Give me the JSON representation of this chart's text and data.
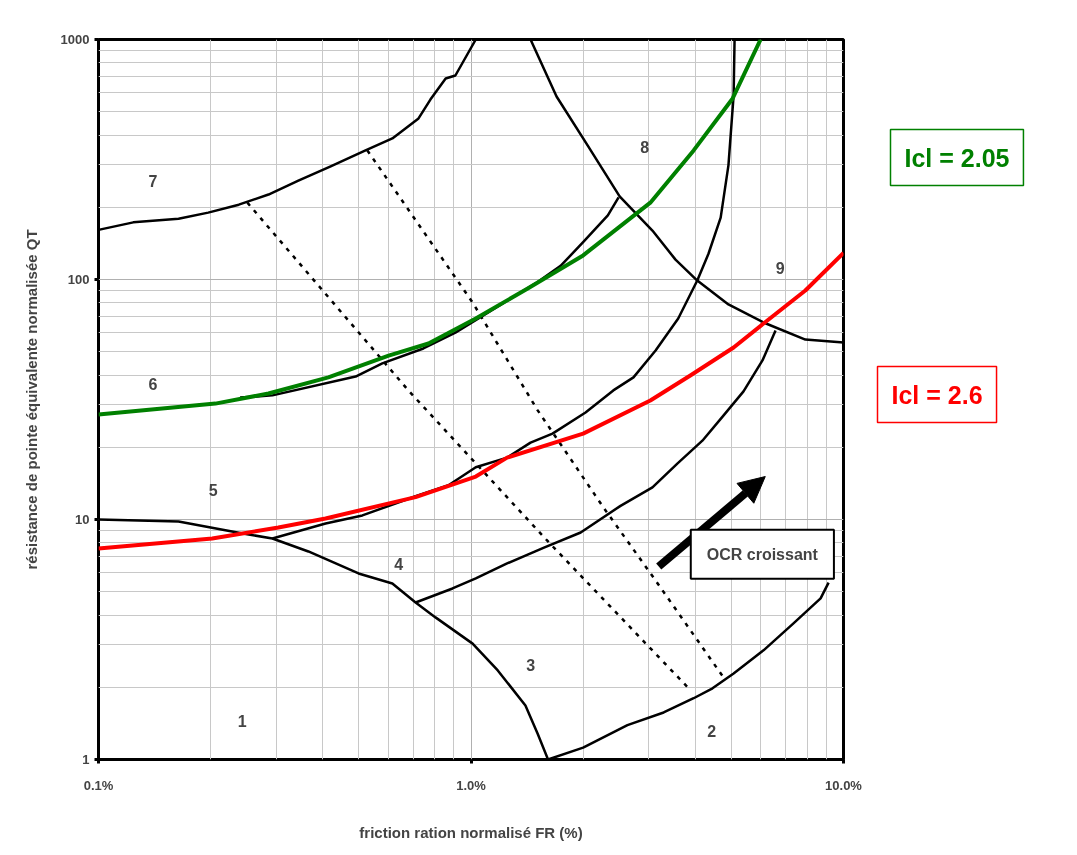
{
  "chart_data": {
    "type": "line",
    "xlabel": "friction ration normalisé FR (%)",
    "ylabel": "résistance de pointe équivalente normalisée QT",
    "log": "xy",
    "grid": true,
    "legend": false,
    "marker": "none",
    "xlim": [
      0.1,
      10
    ],
    "ylim": [
      1,
      1000
    ],
    "xticks": [
      {
        "value": 0.1,
        "label": "0.1%"
      },
      {
        "value": 1,
        "label": "1.0%"
      },
      {
        "value": 10,
        "label": "10.0%"
      }
    ],
    "yticks": [
      1,
      10,
      100,
      1000
    ],
    "series": [
      {
        "color": "#000000",
        "line_style": "solid",
        "x": [
          0.1,
          0.124,
          0.164,
          0.197,
          0.238,
          0.286,
          0.344,
          0.42,
          0.521,
          0.615,
          0.723,
          0.778,
          0.855,
          0.908,
          1.03
        ],
        "values": [
          161,
          173,
          179,
          190,
          205,
          226,
          258,
          296,
          345,
          387,
          469,
          562,
          688,
          708,
          1000
        ]
      },
      {
        "color": "#000000",
        "line_style": "solid",
        "x": [
          1.445,
          1.697,
          2.056,
          2.506,
          3.069,
          3.54,
          4.05,
          4.91,
          6.1,
          7.9,
          10
        ],
        "values": [
          1000,
          579,
          362,
          222,
          160,
          121,
          99,
          78.7,
          66.2,
          56.2,
          54.6
        ]
      },
      {
        "color": "#000000",
        "line_style": "solid",
        "x": [
          0.293,
          0.407,
          0.511,
          0.71,
          0.87,
          1.03,
          1.25,
          1.445,
          1.655,
          2.03,
          2.41,
          2.73,
          3.13,
          3.6,
          4.05,
          4.34,
          4.68,
          4.91,
          5.07,
          5.1
        ],
        "values": [
          8.33,
          9.62,
          10.4,
          12.5,
          13.9,
          16.5,
          18.1,
          20.9,
          22.8,
          27.9,
          34.5,
          39.1,
          50.6,
          68.8,
          99,
          128,
          181,
          299,
          585,
          1000
        ]
      },
      {
        "color": "#000000",
        "line_style": "solid",
        "x": [
          0.24,
          0.293,
          0.49,
          0.578,
          0.745,
          0.908,
          1.49,
          1.74,
          2.0,
          2.33,
          2.49
        ],
        "values": [
          32.2,
          32.9,
          39.4,
          44.7,
          51.6,
          60.1,
          96.3,
          114,
          143,
          185,
          220
        ]
      },
      {
        "color": "#000000",
        "line_style": "solid",
        "x": [
          0.1,
          0.164,
          0.244,
          0.293,
          0.366,
          0.499,
          0.615,
          0.71,
          0.803,
          1.01,
          1.18,
          1.4,
          1.51,
          1.61
        ],
        "values": [
          10,
          9.81,
          8.75,
          8.33,
          7.36,
          5.96,
          5.41,
          4.51,
          3.91,
          3.04,
          2.35,
          1.68,
          1.28,
          1.0
        ]
      },
      {
        "color": "#000000",
        "line_style": "solid",
        "x": [
          0.71,
          0.892,
          1.03,
          1.25,
          1.57,
          1.97,
          2.52,
          3.07,
          3.58,
          4.18,
          4.76,
          5.39,
          6.06,
          6.57
        ],
        "values": [
          4.51,
          5.16,
          5.68,
          6.56,
          7.64,
          8.83,
          11.4,
          13.6,
          17.1,
          21.3,
          27.1,
          34.2,
          46.0,
          61.3
        ]
      },
      {
        "color": "#000000",
        "line_style": "solid",
        "x": [
          1.61,
          2.0,
          2.63,
          3.29,
          3.96,
          4.45,
          5.07,
          6.1,
          7.34,
          8.68,
          9.12
        ],
        "values": [
          1.0,
          1.12,
          1.39,
          1.57,
          1.8,
          1.98,
          2.28,
          2.85,
          3.69,
          4.69,
          5.46
        ]
      },
      {
        "color": "#000000",
        "line_style": "dashed",
        "x": [
          0.251,
          0.679,
          1.6,
          3.84
        ],
        "values": [
          209,
          34.5,
          8.18,
          1.98
        ]
      },
      {
        "color": "#000000",
        "line_style": "dashed",
        "x": [
          0.527,
          1.01,
          1.51,
          2.27,
          3.13,
          4.76
        ],
        "values": [
          345,
          80.2,
          28.5,
          11.2,
          5.57,
          2.2
        ]
      },
      {
        "name": "Icl = 2.05",
        "color": "#008000",
        "line_style": "solid",
        "x": [
          0.1,
          0.206,
          0.286,
          0.414,
          0.601,
          0.769,
          1.03,
          1.42,
          2.0,
          3.03,
          3.96,
          5.04,
          5.99
        ],
        "values": [
          27.4,
          30.4,
          33.5,
          39.1,
          48.2,
          54.1,
          68.8,
          91.7,
          126,
          209,
          345,
          568,
          1000
        ]
      },
      {
        "name": "Icl = 2.6",
        "color": "#ff0000",
        "line_style": "solid",
        "x": [
          0.1,
          0.202,
          0.304,
          0.407,
          0.71,
          1.03,
          1.25,
          2.0,
          3.03,
          3.88,
          5.07,
          6.1,
          7.9,
          10
        ],
        "values": [
          7.57,
          8.33,
          9.26,
          10.1,
          12.4,
          15.1,
          18.1,
          22.8,
          31.3,
          39.8,
          52.1,
          65.6,
          90.0,
          129
        ]
      }
    ],
    "annotations": [
      "7",
      "6",
      "5",
      "4",
      "1",
      "3",
      "2",
      "8",
      "9",
      "OCR croissant"
    ]
  }
}
